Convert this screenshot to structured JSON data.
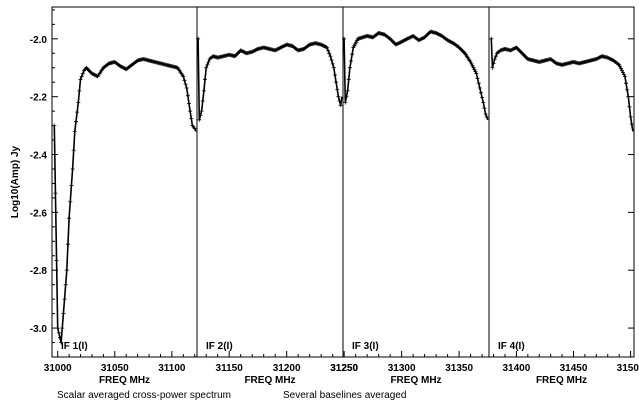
{
  "chart_data": {
    "type": "line",
    "ylabel": "Log10(Amp) Jy",
    "xlabel": "FREQ MHz",
    "ylim": [
      -3.1,
      -1.89
    ],
    "yticks": [
      -2.0,
      -2.2,
      -2.4,
      -2.6,
      -2.8,
      -3.0
    ],
    "ytick_labels": [
      "-2.0",
      "-2.2",
      "-2.4",
      "-2.6",
      "-2.8",
      "-3.0"
    ],
    "footer": [
      "Scalar averaged cross-power spectrum",
      "Several baselines averaged"
    ],
    "panels": [
      {
        "label": "IF 1(I)",
        "xlim": [
          30995,
          31122
        ],
        "xticks": [
          31000,
          31050,
          31100
        ],
        "xtick_labels": [
          "31000",
          "31050",
          "31100"
        ],
        "series": [
          {
            "x": [
              30997,
              31000,
              31003,
              31005,
              31008,
              31010,
              31013,
              31015,
              31018,
              31020,
              31023,
              31025,
              31030,
              31035,
              31040,
              31045,
              31050,
              31055,
              31060,
              31065,
              31070,
              31075,
              31080,
              31085,
              31090,
              31095,
              31100,
              31105,
              31110,
              31113,
              31116,
              31118,
              31120,
              31121
            ],
            "y": [
              -2.3,
              -3.0,
              -3.05,
              -2.95,
              -2.8,
              -2.62,
              -2.45,
              -2.32,
              -2.22,
              -2.14,
              -2.11,
              -2.1,
              -2.12,
              -2.13,
              -2.1,
              -2.085,
              -2.08,
              -2.095,
              -2.105,
              -2.09,
              -2.075,
              -2.07,
              -2.075,
              -2.08,
              -2.085,
              -2.09,
              -2.095,
              -2.1,
              -2.13,
              -2.17,
              -2.25,
              -2.3,
              -2.31,
              -2.32
            ]
          }
        ]
      },
      {
        "label": "IF 2(I)",
        "xlim": [
          31122,
          31249
        ],
        "xticks": [
          31150,
          31200,
          31250
        ],
        "xtick_labels": [
          "31150",
          "31200",
          "31250"
        ],
        "series": [
          {
            "x": [
              31123,
              31124,
              31126,
              31128,
              31130,
              31133,
              31136,
              31140,
              31145,
              31150,
              31155,
              31160,
              31165,
              31170,
              31175,
              31180,
              31185,
              31190,
              31195,
              31200,
              31205,
              31210,
              31215,
              31220,
              31225,
              31230,
              31235,
              31238,
              31241,
              31243,
              31245,
              31247,
              31248
            ],
            "y": [
              -2.0,
              -2.28,
              -2.25,
              -2.18,
              -2.1,
              -2.07,
              -2.06,
              -2.065,
              -2.06,
              -2.055,
              -2.06,
              -2.04,
              -2.05,
              -2.045,
              -2.035,
              -2.03,
              -2.035,
              -2.04,
              -2.03,
              -2.02,
              -2.025,
              -2.04,
              -2.035,
              -2.02,
              -2.015,
              -2.02,
              -2.03,
              -2.06,
              -2.1,
              -2.15,
              -2.2,
              -2.23,
              -2.2
            ]
          }
        ]
      },
      {
        "label": "IF 3(I)",
        "xlim": [
          31249,
          31376
        ],
        "xticks": [
          31250,
          31300,
          31350
        ],
        "xtick_labels": [
          "31250",
          "31300",
          "31350"
        ],
        "series": [
          {
            "x": [
              31250,
              31251,
              31253,
              31255,
              31258,
              31262,
              31266,
              31270,
              31275,
              31280,
              31285,
              31290,
              31295,
              31300,
              31305,
              31310,
              31315,
              31320,
              31325,
              31330,
              31335,
              31340,
              31345,
              31350,
              31355,
              31360,
              31365,
              31368,
              31371,
              31373,
              31375
            ],
            "y": [
              -2.0,
              -2.22,
              -2.18,
              -2.1,
              -2.03,
              -2.0,
              -1.995,
              -1.99,
              -1.995,
              -1.98,
              -1.985,
              -2.0,
              -2.02,
              -2.01,
              -2.0,
              -1.99,
              -2.005,
              -1.995,
              -1.975,
              -1.98,
              -1.99,
              -2.005,
              -2.015,
              -2.03,
              -2.05,
              -2.08,
              -2.12,
              -2.17,
              -2.22,
              -2.26,
              -2.28
            ]
          }
        ]
      },
      {
        "label": "IF 4(I)",
        "xlim": [
          31376,
          31503
        ],
        "xticks": [
          31400,
          31450,
          31500
        ],
        "xtick_labels": [
          "31400",
          "31450",
          "31500"
        ],
        "series": [
          {
            "x": [
              31378,
              31379,
              31381,
              31383,
              31386,
              31390,
              31395,
              31400,
              31405,
              31410,
              31415,
              31420,
              31425,
              31430,
              31435,
              31440,
              31445,
              31450,
              31455,
              31460,
              31465,
              31470,
              31475,
              31480,
              31485,
              31490,
              31495,
              31498,
              31500,
              31502
            ],
            "y": [
              -2.0,
              -2.1,
              -2.07,
              -2.05,
              -2.04,
              -2.035,
              -2.04,
              -2.03,
              -2.05,
              -2.07,
              -2.075,
              -2.08,
              -2.075,
              -2.07,
              -2.085,
              -2.09,
              -2.085,
              -2.08,
              -2.085,
              -2.08,
              -2.075,
              -2.07,
              -2.06,
              -2.065,
              -2.075,
              -2.09,
              -2.13,
              -2.2,
              -2.27,
              -2.32
            ]
          }
        ]
      }
    ]
  }
}
